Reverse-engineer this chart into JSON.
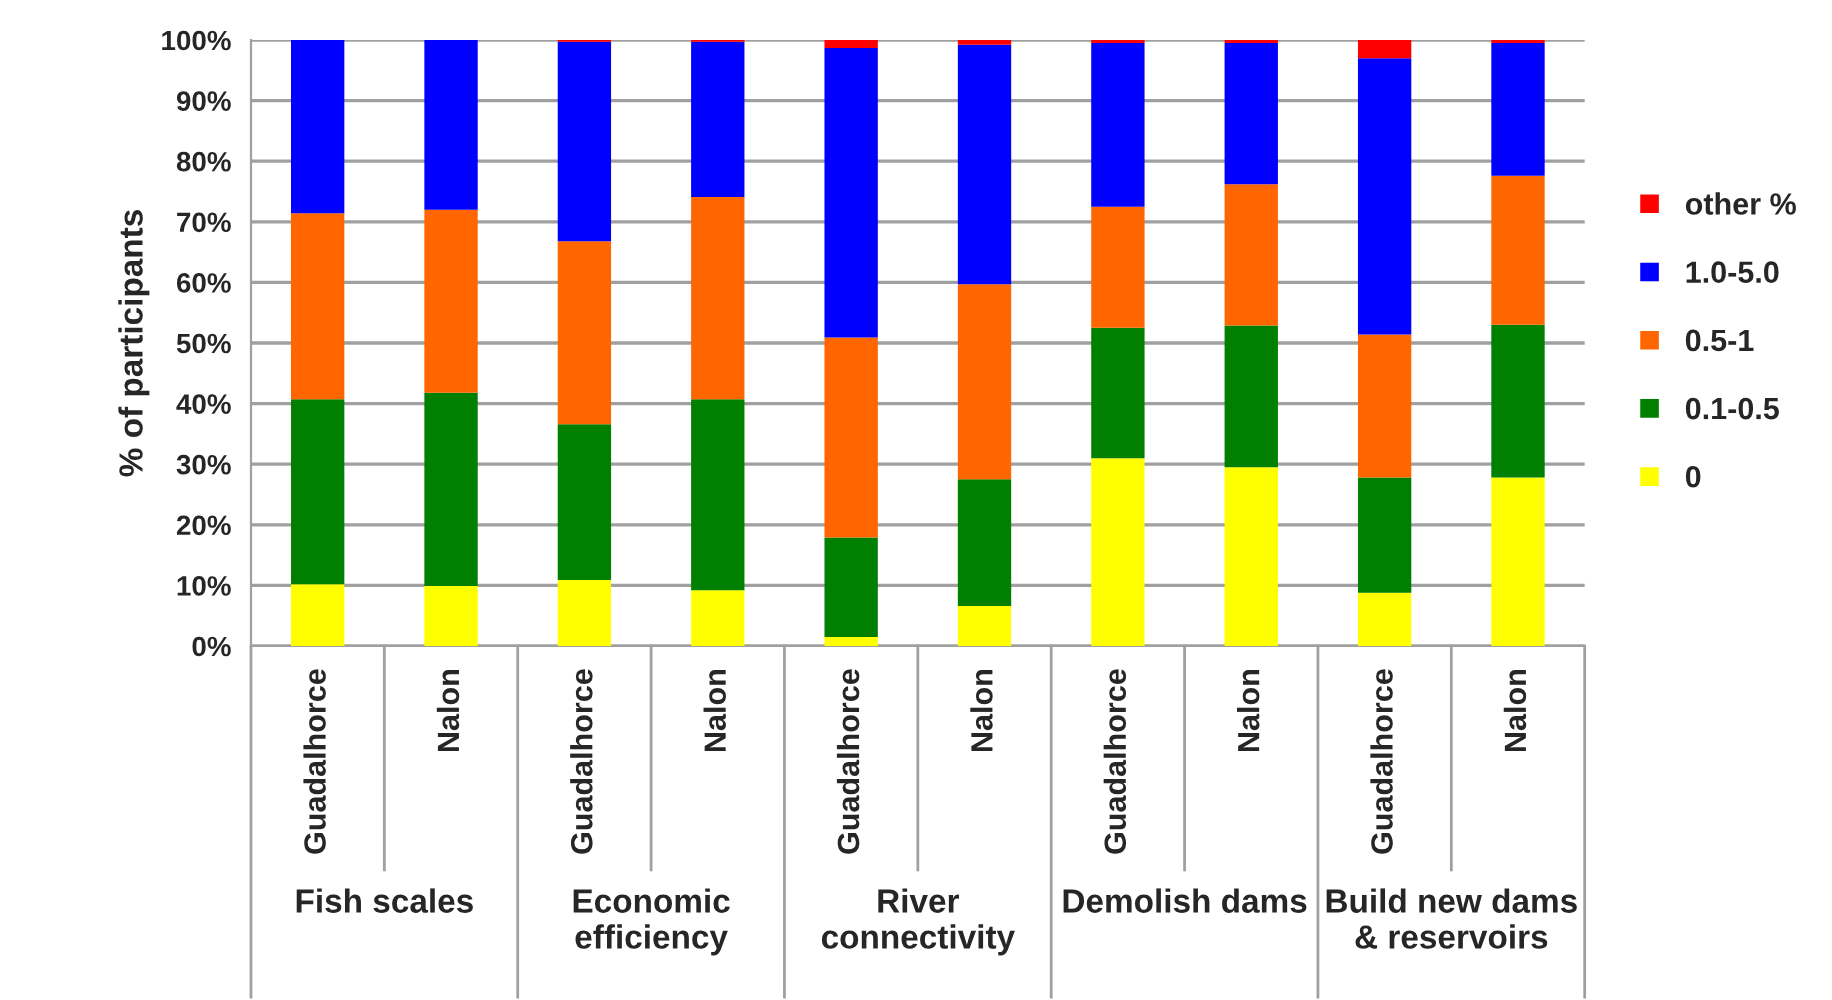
{
  "chart_data": {
    "type": "bar",
    "stacked": true,
    "ylabel": "% of participants",
    "categories": [
      "Guadalhorce",
      "Nalon",
      "Guadalhorce",
      "Nalon",
      "Guadalhorce",
      "Nalon",
      "Guadalhorce",
      "Nalon",
      "Guadalhorce",
      "Nalon"
    ],
    "annotations": [
      "Fish scales",
      "Economic\nefficiency",
      "River\nconnectivity",
      "Demolish dams",
      "Build new dams\n& reservoirs"
    ],
    "series": [
      {
        "name": "0",
        "color": "#ffff00",
        "values": [
          10.2,
          9.9,
          10.9,
          9.2,
          1.5,
          6.6,
          31.0,
          29.5,
          8.8,
          27.8
        ]
      },
      {
        "name": "0.1-0.5",
        "color": "#007f00",
        "values": [
          30.5,
          31.9,
          25.7,
          31.5,
          16.4,
          20.9,
          21.5,
          23.4,
          19.0,
          25.2
        ]
      },
      {
        "name": "0.5-1",
        "color": "#ff6600",
        "values": [
          30.7,
          30.2,
          30.2,
          33.4,
          33.0,
          32.2,
          20.0,
          23.3,
          23.6,
          24.6
        ]
      },
      {
        "name": "1.0-5.0",
        "color": "#0000ff",
        "values": [
          28.6,
          28.0,
          32.9,
          25.6,
          47.8,
          39.5,
          27.0,
          23.3,
          45.6,
          21.9
        ]
      },
      {
        "name": "other %",
        "color": "#ff0000",
        "values": [
          null,
          null,
          0.3,
          0.3,
          1.3,
          0.8,
          0.5,
          0.5,
          3.0,
          0.5
        ]
      }
    ],
    "ylim": [
      0,
      100
    ],
    "yticks": [
      {
        "value": 0,
        "label": "0%"
      },
      {
        "value": 10,
        "label": "10%"
      },
      {
        "value": 20,
        "label": "20%"
      },
      {
        "value": 30,
        "label": "30%"
      },
      {
        "value": 40,
        "label": "40%"
      },
      {
        "value": 50,
        "label": "50%"
      },
      {
        "value": 60,
        "label": "60%"
      },
      {
        "value": 70,
        "label": "70%"
      },
      {
        "value": 80,
        "label": "80%"
      },
      {
        "value": 90,
        "label": "90%"
      },
      {
        "value": 100,
        "label": "100%"
      }
    ],
    "grid": "y",
    "legend": "right"
  }
}
